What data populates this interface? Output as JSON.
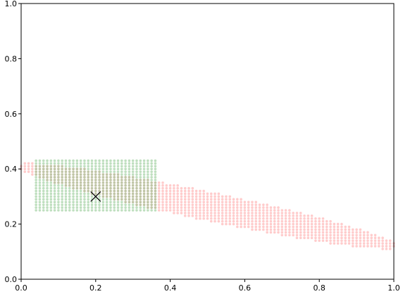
{
  "chart_data": {
    "type": "scatter",
    "xlim": [
      0.0,
      1.0
    ],
    "ylim": [
      0.0,
      1.0
    ],
    "xticks": [
      "0.0",
      "0.2",
      "0.4",
      "0.6",
      "0.8",
      "1.0"
    ],
    "yticks": [
      "0.0",
      "0.2",
      "0.4",
      "0.6",
      "0.8",
      "1.0"
    ],
    "grid": false,
    "series": [
      {
        "kind": "ellipse-point-cloud",
        "color": "#ff9a9a",
        "center": [
          0.5,
          0.265
        ],
        "semi_major": 0.535,
        "semi_minor": 0.052,
        "angle_deg": -16.0,
        "grid_step": 0.01
      },
      {
        "kind": "rectangle-point-cloud",
        "color": "#7fbf7f",
        "x_range": [
          0.04,
          0.365
        ],
        "y_range": [
          0.25,
          0.43
        ],
        "grid_step": 0.01
      }
    ],
    "marker": {
      "symbol": "x",
      "x": 0.2,
      "y": 0.3,
      "color": "#000000"
    }
  }
}
